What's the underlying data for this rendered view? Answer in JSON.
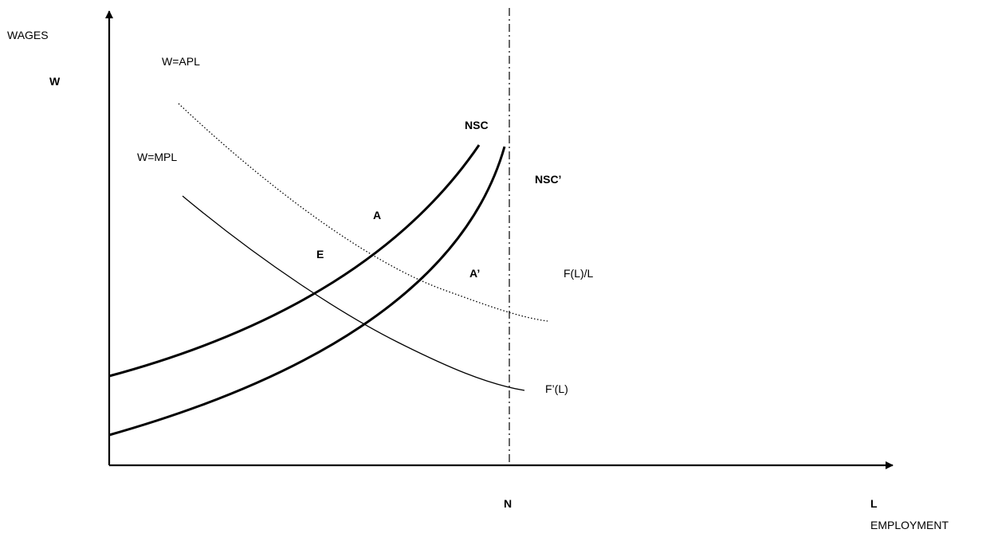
{
  "axes": {
    "y_label": "WAGES",
    "y_symbol": "W",
    "x_label": "EMPLOYMENT",
    "x_symbol": "L",
    "n_marker": "N"
  },
  "curves": {
    "apl_label": "W=APL",
    "mpl_label": "W=MPL",
    "nsc_label": "NSC",
    "nsc_prime_label": "NSC’",
    "apl_function_label": "F(L)/L",
    "mpl_function_label": "F’(L)"
  },
  "points": {
    "a": "A",
    "a_prime": "A’",
    "e": "E"
  },
  "colors": {
    "ink": "#000000",
    "background": "#ffffff"
  }
}
